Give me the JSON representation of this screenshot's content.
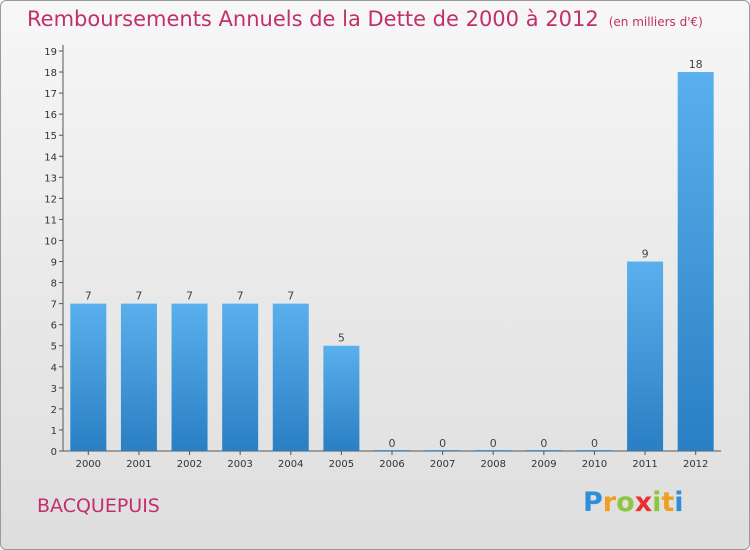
{
  "chart_data": {
    "type": "bar",
    "title": "Remboursements Annuels de la Dette de 2000 à 2012",
    "unit": "(en milliers d'€)",
    "categories": [
      "2000",
      "2001",
      "2002",
      "2003",
      "2004",
      "2005",
      "2006",
      "2007",
      "2008",
      "2009",
      "2010",
      "2011",
      "2012"
    ],
    "values": [
      7,
      7,
      7,
      7,
      7,
      5,
      0,
      0,
      0,
      0,
      0,
      9,
      18
    ],
    "ylim": [
      0,
      19
    ],
    "yticks": [
      0,
      1,
      2,
      3,
      4,
      5,
      6,
      7,
      8,
      9,
      10,
      11,
      12,
      13,
      14,
      15,
      16,
      17,
      18,
      19
    ],
    "grid": false,
    "bar_color": "#4ba3e3"
  },
  "commune": "BACQUEPUIS",
  "logo": {
    "letters": [
      "P",
      "r",
      "o",
      "x",
      "i",
      "t",
      "i"
    ],
    "colors": [
      "#2e8fd8",
      "#f0a020",
      "#8cc63f",
      "#e8312f",
      "#8cc63f",
      "#f0a020",
      "#2e8fd8"
    ]
  }
}
